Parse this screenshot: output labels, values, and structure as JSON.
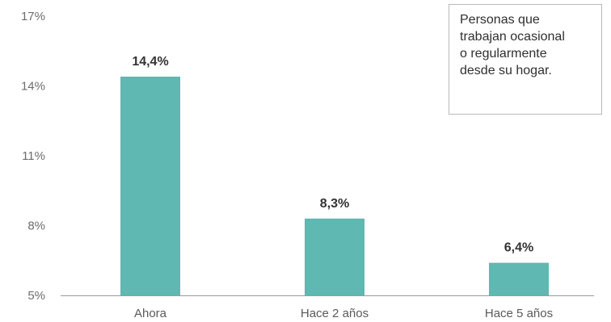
{
  "chart_data": {
    "type": "bar",
    "categories": [
      "Ahora",
      "Hace 2 años",
      "Hace 5 años"
    ],
    "values": [
      14.4,
      8.3,
      6.4
    ],
    "value_labels": [
      "14,4%",
      "8,3%",
      "6,4%"
    ],
    "ylim": [
      5,
      17
    ],
    "yticks": [
      5,
      8,
      11,
      14,
      17
    ],
    "ytick_labels": [
      "5%",
      "8%",
      "11%",
      "14%",
      "17%"
    ],
    "grid": false,
    "bar_color": "#5fb8b1",
    "annotation": {
      "lines": [
        "Personas que",
        "trabajan ocasional",
        "o regularmente",
        "desde su hogar."
      ],
      "placement": "top-right"
    }
  }
}
